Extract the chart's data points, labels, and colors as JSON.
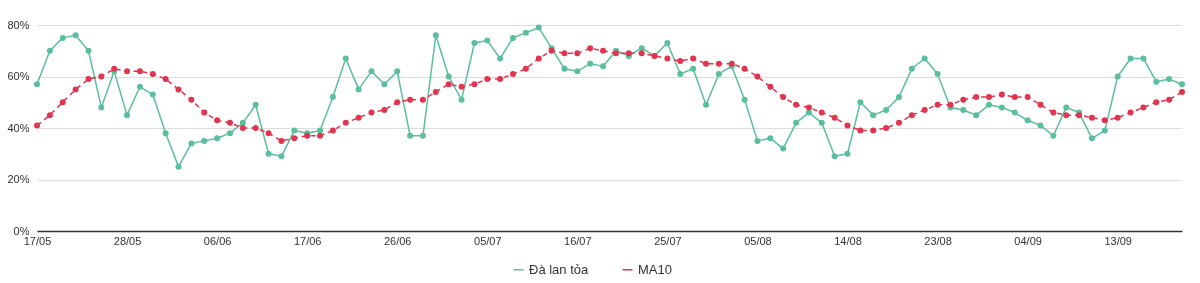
{
  "chart_data": {
    "type": "line",
    "categories": [
      "17/05",
      null,
      null,
      null,
      null,
      null,
      null,
      "28/05",
      null,
      null,
      null,
      null,
      null,
      null,
      "06/06",
      null,
      null,
      null,
      null,
      null,
      null,
      "17/06",
      null,
      null,
      null,
      null,
      null,
      null,
      "26/06",
      null,
      null,
      null,
      null,
      null,
      null,
      "05/07",
      null,
      null,
      null,
      null,
      null,
      null,
      "16/07",
      null,
      null,
      null,
      null,
      null,
      null,
      "25/07",
      null,
      null,
      null,
      null,
      null,
      null,
      "05/08",
      null,
      null,
      null,
      null,
      null,
      null,
      "14/08",
      null,
      null,
      null,
      null,
      null,
      null,
      "23/08",
      null,
      null,
      null,
      null,
      null,
      null,
      "04/09",
      null,
      null,
      null,
      null,
      null,
      null,
      "13/09",
      null,
      null,
      null,
      null,
      null
    ],
    "series": [
      {
        "name": "Đà lan tỏa",
        "color": "#5bbf9b",
        "line_style": "solid",
        "values": [
          57,
          70,
          75,
          76,
          70,
          48,
          62,
          45,
          56,
          53,
          38,
          25,
          34,
          35,
          36,
          38,
          42,
          49,
          30,
          29,
          39,
          38,
          39,
          52,
          67,
          55,
          62,
          57,
          62,
          37,
          37,
          76,
          60,
          51,
          73,
          74,
          67,
          75,
          77,
          79,
          71,
          63,
          62,
          65,
          64,
          70,
          68,
          71,
          68,
          73,
          61,
          63,
          49,
          61,
          64,
          51,
          35,
          36,
          32,
          42,
          46,
          42,
          29,
          30,
          50,
          45,
          47,
          52,
          63,
          67,
          61,
          48,
          47,
          45,
          49,
          48,
          46,
          43,
          41,
          37,
          48,
          46,
          36,
          39,
          60,
          67,
          67,
          58,
          59,
          57
        ]
      },
      {
        "name": "MA10",
        "color": "#e0344f",
        "line_style": "dashed",
        "values": [
          41,
          45,
          50,
          55,
          59,
          60,
          63,
          62,
          62,
          61,
          59,
          55,
          51,
          46,
          43,
          42,
          40,
          40,
          38,
          35,
          36,
          37,
          37,
          39,
          42,
          44,
          46,
          47,
          50,
          51,
          51,
          54,
          57,
          56,
          57,
          59,
          59,
          61,
          63,
          67,
          70,
          69,
          69,
          71,
          70,
          69,
          69,
          69,
          68,
          67,
          66,
          67,
          65,
          65,
          65,
          63,
          60,
          56,
          52,
          49,
          48,
          46,
          44,
          41,
          39,
          39,
          40,
          42,
          45,
          47,
          49,
          49,
          51,
          52,
          52,
          53,
          52,
          52,
          49,
          46,
          45,
          45,
          44,
          43,
          44,
          46,
          48,
          50,
          51,
          54
        ]
      }
    ],
    "ylim": [
      0,
      80
    ],
    "yticks": [
      {
        "value": 0,
        "label": "0%"
      },
      {
        "value": 20,
        "label": "20%"
      },
      {
        "value": 40,
        "label": "40%"
      },
      {
        "value": 60,
        "label": "60%"
      },
      {
        "value": 80,
        "label": "80%"
      }
    ],
    "grid": "y",
    "legend": "bottom",
    "marker": "circle"
  }
}
